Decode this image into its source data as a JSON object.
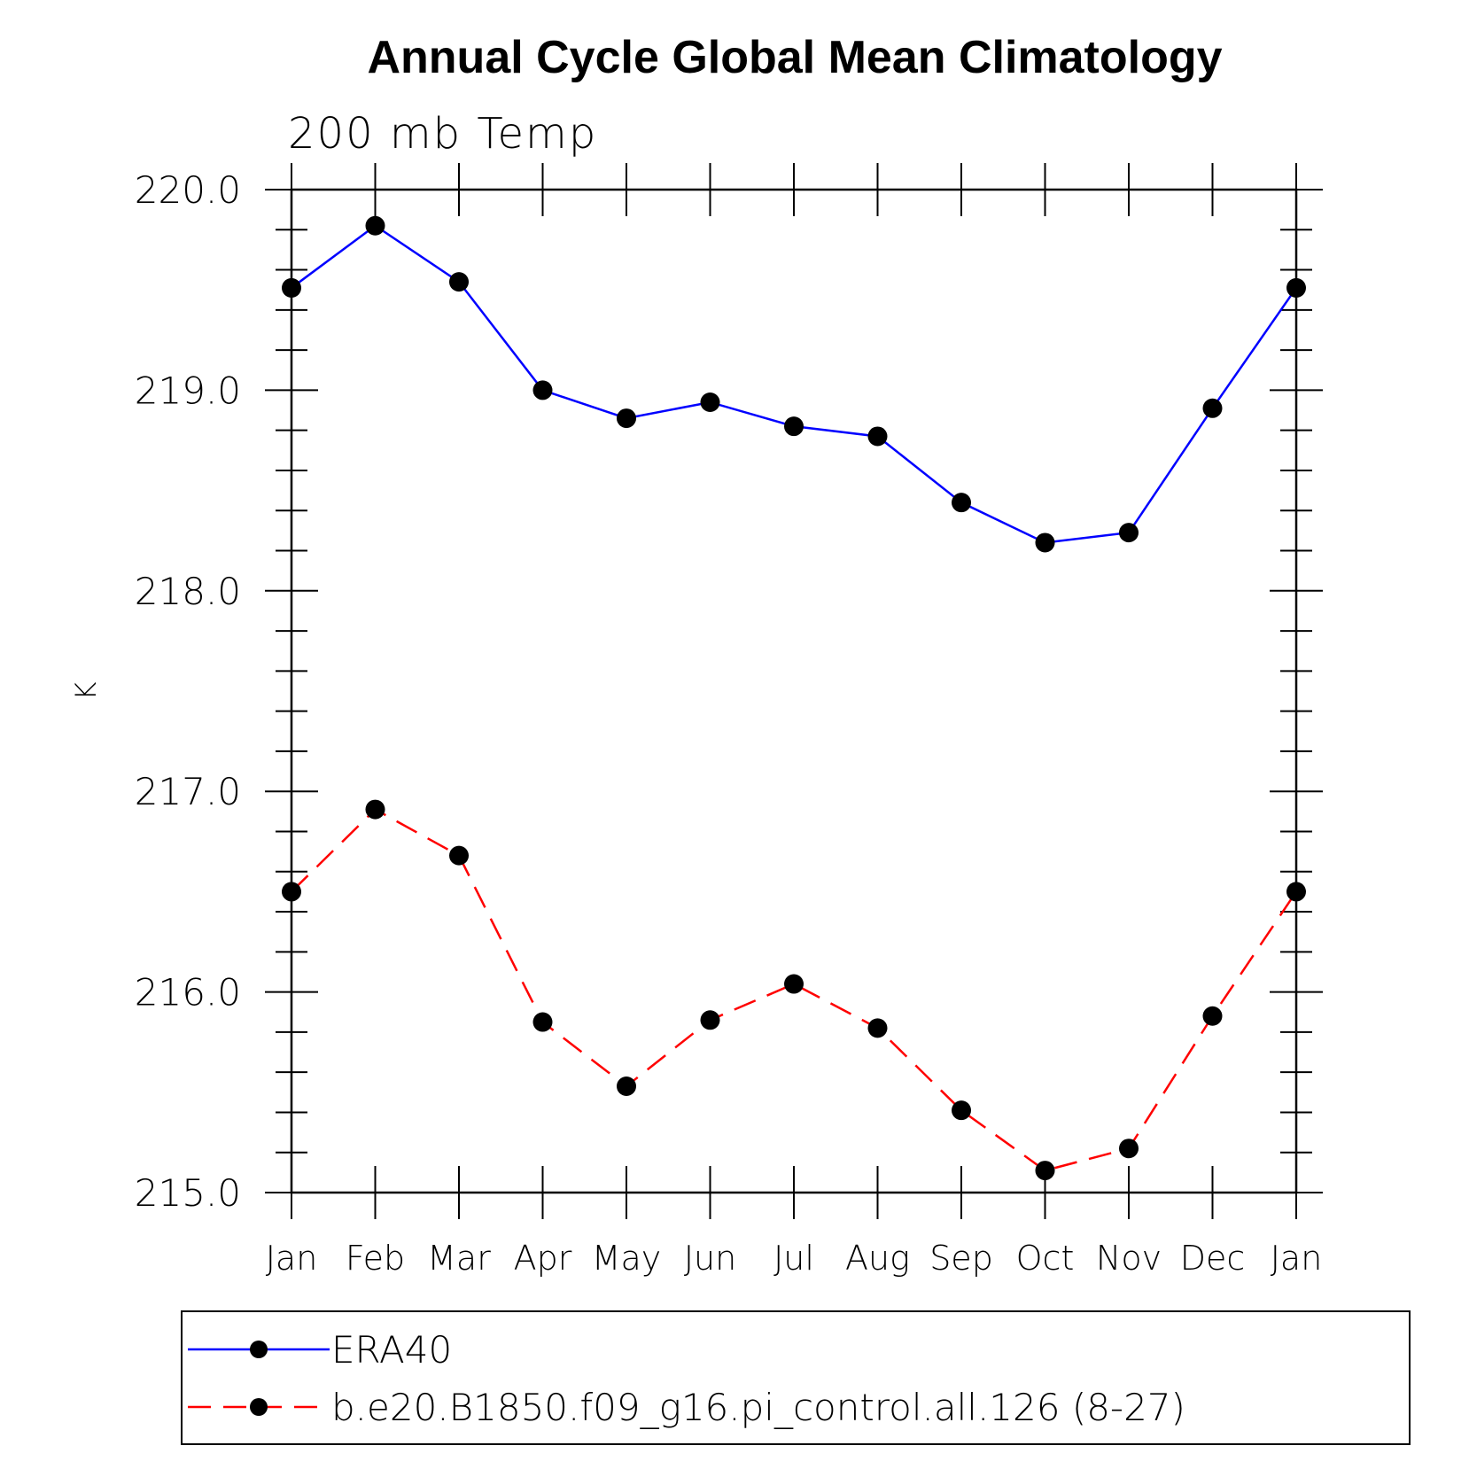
{
  "chart_data": {
    "type": "line",
    "title": "Annual Cycle Global Mean Climatology",
    "subtitle": "200 mb Temp",
    "xlabel": "",
    "ylabel": "K",
    "categories": [
      "Jan",
      "Feb",
      "Mar",
      "Apr",
      "May",
      "Jun",
      "Jul",
      "Aug",
      "Sep",
      "Oct",
      "Nov",
      "Dec",
      "Jan"
    ],
    "ylim": [
      215.0,
      220.0
    ],
    "yticks": [
      "215.0",
      "216.0",
      "217.0",
      "218.0",
      "219.0",
      "220.0"
    ],
    "grid": false,
    "legend_position": "bottom",
    "series": [
      {
        "name": "ERA40",
        "color": "#0000ff",
        "dash": "solid",
        "marker": "filled-circle",
        "values": [
          219.51,
          219.82,
          219.54,
          219.0,
          218.86,
          218.94,
          218.82,
          218.77,
          218.44,
          218.24,
          218.29,
          218.91,
          219.51
        ]
      },
      {
        "name": "b.e20.B1850.f09_g16.pi_control.all.126 (8-27)",
        "color": "#ff0000",
        "dash": "dashed",
        "marker": "filled-circle",
        "values": [
          216.5,
          216.91,
          216.68,
          215.85,
          215.53,
          215.86,
          216.04,
          215.82,
          215.41,
          215.11,
          215.22,
          215.88,
          216.5
        ]
      }
    ]
  }
}
